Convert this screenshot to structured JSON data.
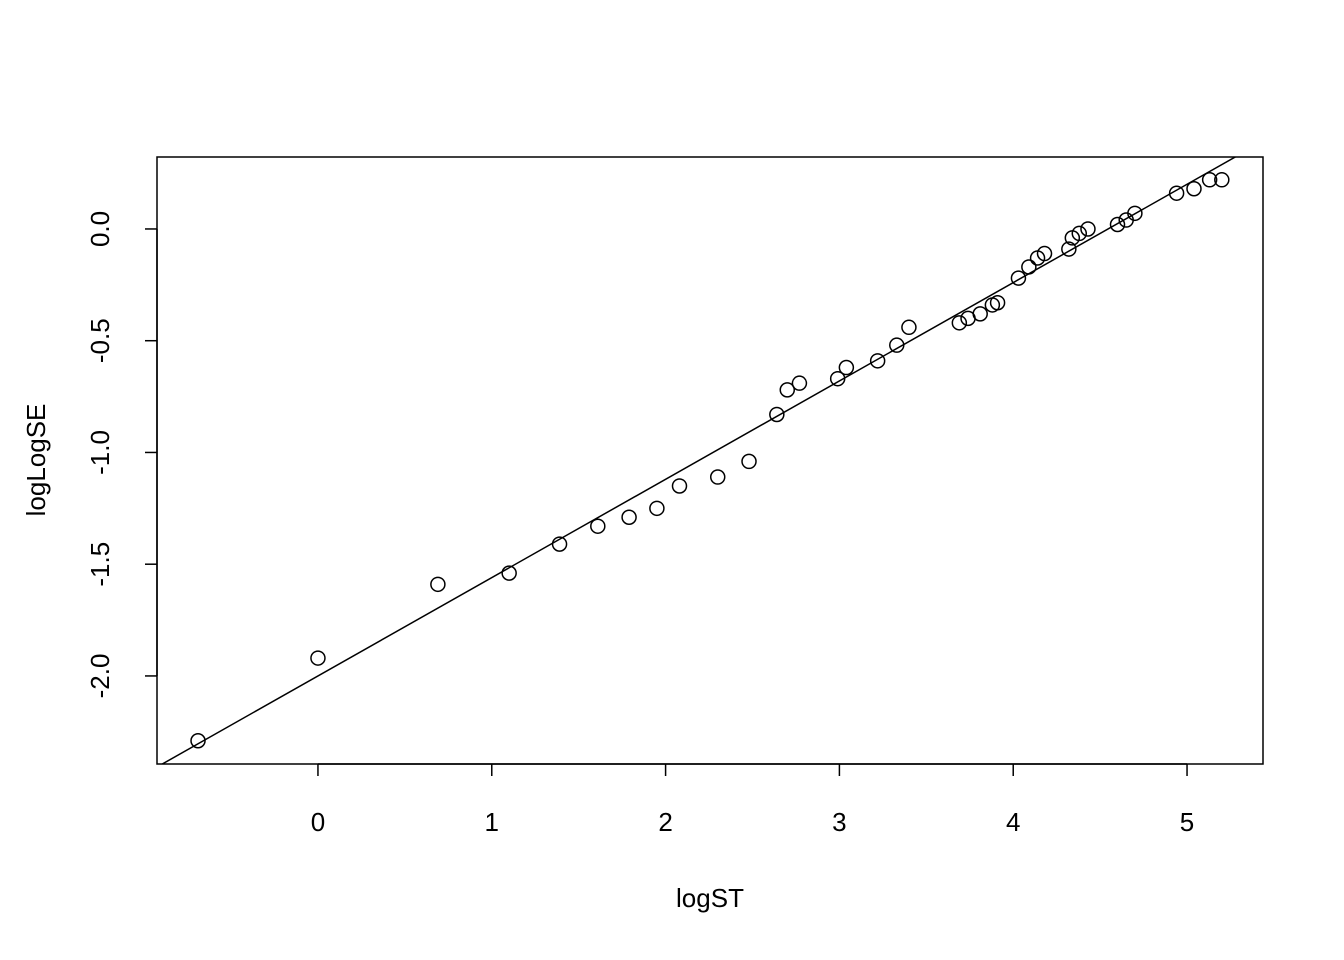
{
  "chart_data": {
    "type": "scatter",
    "x_label": "logST",
    "y_label": "logLogSE",
    "x": [
      -0.69,
      0,
      0.69,
      1.1,
      1.39,
      1.61,
      1.79,
      1.95,
      2.08,
      2.3,
      2.48,
      2.64,
      2.7,
      2.77,
      2.99,
      3.04,
      3.22,
      3.33,
      3.4,
      3.69,
      3.74,
      3.81,
      3.88,
      3.91,
      4.03,
      4.09,
      4.14,
      4.18,
      4.32,
      4.34,
      4.38,
      4.43,
      4.6,
      4.65,
      4.7,
      4.94,
      5.04,
      5.13,
      5.2
    ],
    "y": [
      -2.29,
      -1.92,
      -1.59,
      -1.54,
      -1.41,
      -1.33,
      -1.29,
      -1.25,
      -1.15,
      -1.11,
      -1.04,
      -0.83,
      -0.72,
      -0.69,
      -0.67,
      -0.62,
      -0.59,
      -0.52,
      -0.44,
      -0.42,
      -0.4,
      -0.38,
      -0.34,
      -0.33,
      -0.22,
      -0.17,
      -0.13,
      -0.11,
      -0.09,
      -0.04,
      -0.02,
      0.0,
      0.02,
      0.04,
      0.07,
      0.16,
      0.18,
      0.22,
      0.22
    ],
    "fit": {
      "intercept": -2.0,
      "slope": 0.44
    },
    "color": "#000000",
    "xlim": [
      -0.926,
      5.437
    ],
    "ylim": [
      -2.394,
      0.322
    ],
    "xticks": [
      0,
      1,
      2,
      3,
      4,
      5
    ],
    "yticks": [
      {
        "value": 0,
        "label": "0.0"
      },
      -0.5,
      {
        "value": -1,
        "label": "-1.0"
      },
      -1.5,
      {
        "value": -2,
        "label": "-2.0"
      }
    ]
  }
}
